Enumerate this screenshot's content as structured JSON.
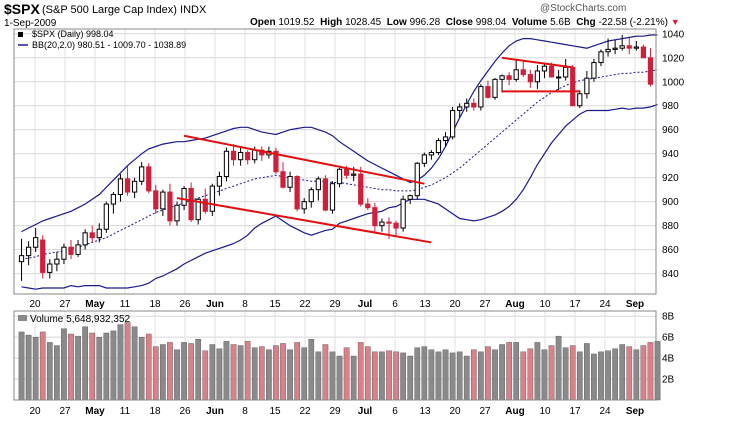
{
  "header": {
    "symbol": "$SPX",
    "description": "(S&P 500 Large Cap Index)",
    "exchange": "INDX",
    "date": "1-Sep-2009",
    "open_label": "Open",
    "open": "1019.52",
    "high_label": "High",
    "high": "1028.45",
    "low_label": "Low",
    "low": "996.28",
    "close_label": "Close",
    "close": "998.04",
    "volume_label": "Volume",
    "volume": "5.6B",
    "chg_label": "Chg",
    "chg": "-22.58 (-2.21%)",
    "watermark": "@StockCharts.com"
  },
  "colors": {
    "up": "#000000",
    "down": "#d11f3b",
    "band": "#1a1a8c",
    "trendline": "#e01010",
    "vol_up": "#8a8a8a",
    "vol_down": "#d98088"
  },
  "chart_data": [
    {
      "type": "candlestick",
      "legend": [
        "$SPX (Daily) 998.04",
        "BB(20,2.0) 980.51 - 1009.70 - 1038.89"
      ],
      "y_ticks": [
        840,
        860,
        880,
        900,
        920,
        940,
        960,
        980,
        1000,
        1020,
        1040
      ],
      "ylim": [
        823,
        1044
      ],
      "x_tick_labels": [
        "20",
        "27",
        "May",
        "11",
        "18",
        "26",
        "Jun",
        "8",
        "15",
        "22",
        "29",
        "Jul",
        "6",
        "13",
        "20",
        "27",
        "Aug",
        "10",
        "17",
        "24",
        "Sep"
      ],
      "grid": true,
      "candles": [
        {
          "o": 850,
          "h": 869,
          "l": 834,
          "c": 855
        },
        {
          "o": 855,
          "h": 867,
          "l": 847,
          "c": 862
        },
        {
          "o": 862,
          "h": 878,
          "l": 858,
          "c": 870
        },
        {
          "o": 868,
          "h": 872,
          "l": 836,
          "c": 841
        },
        {
          "o": 841,
          "h": 852,
          "l": 836,
          "c": 848
        },
        {
          "o": 848,
          "h": 858,
          "l": 842,
          "c": 852
        },
        {
          "o": 852,
          "h": 865,
          "l": 848,
          "c": 862
        },
        {
          "o": 862,
          "h": 868,
          "l": 852,
          "c": 856
        },
        {
          "o": 856,
          "h": 868,
          "l": 854,
          "c": 864
        },
        {
          "o": 864,
          "h": 877,
          "l": 860,
          "c": 874
        },
        {
          "o": 874,
          "h": 880,
          "l": 866,
          "c": 870
        },
        {
          "o": 870,
          "h": 882,
          "l": 866,
          "c": 877
        },
        {
          "o": 877,
          "h": 900,
          "l": 874,
          "c": 898
        },
        {
          "o": 898,
          "h": 908,
          "l": 890,
          "c": 906
        },
        {
          "o": 906,
          "h": 923,
          "l": 900,
          "c": 919
        },
        {
          "o": 919,
          "h": 930,
          "l": 905,
          "c": 908
        },
        {
          "o": 908,
          "h": 920,
          "l": 903,
          "c": 917
        },
        {
          "o": 917,
          "h": 933,
          "l": 914,
          "c": 929
        },
        {
          "o": 929,
          "h": 932,
          "l": 907,
          "c": 909
        },
        {
          "o": 909,
          "h": 914,
          "l": 890,
          "c": 894
        },
        {
          "o": 894,
          "h": 910,
          "l": 888,
          "c": 908
        },
        {
          "o": 908,
          "h": 915,
          "l": 880,
          "c": 884
        },
        {
          "o": 884,
          "h": 900,
          "l": 880,
          "c": 897
        },
        {
          "o": 897,
          "h": 913,
          "l": 893,
          "c": 911
        },
        {
          "o": 911,
          "h": 916,
          "l": 883,
          "c": 885
        },
        {
          "o": 885,
          "h": 903,
          "l": 881,
          "c": 902
        },
        {
          "o": 902,
          "h": 911,
          "l": 890,
          "c": 892
        },
        {
          "o": 892,
          "h": 915,
          "l": 888,
          "c": 913
        },
        {
          "o": 913,
          "h": 925,
          "l": 905,
          "c": 921
        },
        {
          "o": 921,
          "h": 945,
          "l": 917,
          "c": 942
        },
        {
          "o": 942,
          "h": 948,
          "l": 930,
          "c": 935
        },
        {
          "o": 935,
          "h": 945,
          "l": 930,
          "c": 941
        },
        {
          "o": 941,
          "h": 943,
          "l": 931,
          "c": 935
        },
        {
          "o": 935,
          "h": 946,
          "l": 932,
          "c": 943
        },
        {
          "o": 943,
          "h": 946,
          "l": 934,
          "c": 939
        },
        {
          "o": 939,
          "h": 946,
          "l": 936,
          "c": 942
        },
        {
          "o": 942,
          "h": 945,
          "l": 923,
          "c": 925
        },
        {
          "o": 925,
          "h": 933,
          "l": 911,
          "c": 912
        },
        {
          "o": 912,
          "h": 925,
          "l": 908,
          "c": 921
        },
        {
          "o": 921,
          "h": 922,
          "l": 892,
          "c": 894
        },
        {
          "o": 894,
          "h": 903,
          "l": 890,
          "c": 900
        },
        {
          "o": 900,
          "h": 912,
          "l": 895,
          "c": 910
        },
        {
          "o": 910,
          "h": 921,
          "l": 901,
          "c": 919
        },
        {
          "o": 919,
          "h": 922,
          "l": 892,
          "c": 893
        },
        {
          "o": 893,
          "h": 917,
          "l": 890,
          "c": 915
        },
        {
          "o": 915,
          "h": 928,
          "l": 912,
          "c": 927
        },
        {
          "o": 927,
          "h": 930,
          "l": 919,
          "c": 922
        },
        {
          "o": 922,
          "h": 929,
          "l": 917,
          "c": 923
        },
        {
          "o": 923,
          "h": 929,
          "l": 896,
          "c": 898
        },
        {
          "o": 898,
          "h": 903,
          "l": 893,
          "c": 895
        },
        {
          "o": 895,
          "h": 899,
          "l": 874,
          "c": 880
        },
        {
          "o": 880,
          "h": 886,
          "l": 875,
          "c": 883
        },
        {
          "o": 883,
          "h": 887,
          "l": 869,
          "c": 882
        },
        {
          "o": 882,
          "h": 884,
          "l": 872,
          "c": 878
        },
        {
          "o": 878,
          "h": 905,
          "l": 875,
          "c": 902
        },
        {
          "o": 902,
          "h": 906,
          "l": 898,
          "c": 905
        },
        {
          "o": 905,
          "h": 933,
          "l": 902,
          "c": 932
        },
        {
          "o": 932,
          "h": 941,
          "l": 929,
          "c": 939
        },
        {
          "o": 939,
          "h": 943,
          "l": 935,
          "c": 941
        },
        {
          "o": 941,
          "h": 953,
          "l": 939,
          "c": 951
        },
        {
          "o": 951,
          "h": 958,
          "l": 946,
          "c": 954
        },
        {
          "o": 954,
          "h": 979,
          "l": 952,
          "c": 976
        },
        {
          "o": 976,
          "h": 982,
          "l": 970,
          "c": 979
        },
        {
          "o": 979,
          "h": 986,
          "l": 975,
          "c": 982
        },
        {
          "o": 982,
          "h": 986,
          "l": 976,
          "c": 979
        },
        {
          "o": 979,
          "h": 998,
          "l": 976,
          "c": 996
        },
        {
          "o": 996,
          "h": 1001,
          "l": 986,
          "c": 987
        },
        {
          "o": 987,
          "h": 1003,
          "l": 985,
          "c": 1002
        },
        {
          "o": 1002,
          "h": 1006,
          "l": 991,
          "c": 1005
        },
        {
          "o": 1005,
          "h": 1008,
          "l": 997,
          "c": 1002
        },
        {
          "o": 1002,
          "h": 1018,
          "l": 1000,
          "c": 1010
        },
        {
          "o": 1010,
          "h": 1018,
          "l": 1004,
          "c": 1006
        },
        {
          "o": 1006,
          "h": 1010,
          "l": 995,
          "c": 1000
        },
        {
          "o": 1000,
          "h": 1014,
          "l": 994,
          "c": 1009
        },
        {
          "o": 1009,
          "h": 1015,
          "l": 1003,
          "c": 1013
        },
        {
          "o": 1013,
          "h": 1016,
          "l": 1004,
          "c": 1004
        },
        {
          "o": 1004,
          "h": 1010,
          "l": 993,
          "c": 1004
        },
        {
          "o": 1004,
          "h": 1019,
          "l": 1001,
          "c": 1012
        },
        {
          "o": 1012,
          "h": 1014,
          "l": 980,
          "c": 980
        },
        {
          "o": 980,
          "h": 993,
          "l": 978,
          "c": 990
        },
        {
          "o": 990,
          "h": 1009,
          "l": 986,
          "c": 1003
        },
        {
          "o": 1003,
          "h": 1019,
          "l": 1000,
          "c": 1016
        },
        {
          "o": 1016,
          "h": 1027,
          "l": 1013,
          "c": 1025
        },
        {
          "o": 1025,
          "h": 1036,
          "l": 1021,
          "c": 1027
        },
        {
          "o": 1027,
          "h": 1035,
          "l": 1023,
          "c": 1028
        },
        {
          "o": 1028,
          "h": 1039,
          "l": 1026,
          "c": 1030
        },
        {
          "o": 1030,
          "h": 1037,
          "l": 1023,
          "c": 1028
        },
        {
          "o": 1028,
          "h": 1034,
          "l": 1026,
          "c": 1029
        },
        {
          "o": 1029,
          "h": 1031,
          "l": 1020,
          "c": 1020
        },
        {
          "o": 1020,
          "h": 1028,
          "l": 996,
          "c": 998
        }
      ],
      "bb_upper": [
        875,
        878,
        881,
        884,
        886,
        888,
        890,
        892,
        895,
        898,
        902,
        906,
        912,
        918,
        924,
        930,
        935,
        940,
        944,
        946,
        948,
        949,
        950,
        950,
        951,
        952,
        953,
        955,
        957,
        959,
        961,
        962,
        962,
        960,
        958,
        957,
        956,
        958,
        960,
        961,
        962,
        962,
        960,
        958,
        955,
        950,
        946,
        942,
        938,
        934,
        931,
        928,
        925,
        922,
        919,
        916,
        918,
        922,
        928,
        936,
        946,
        958,
        970,
        981,
        992,
        1001,
        1009,
        1017,
        1024,
        1030,
        1034,
        1036,
        1036,
        1035,
        1034,
        1033,
        1032,
        1031,
        1030,
        1029,
        1028,
        1030,
        1032,
        1034,
        1035,
        1036,
        1037,
        1038,
        1038,
        1039,
        1039
      ],
      "bb_middle": [
        852,
        853,
        854,
        856,
        857,
        858,
        859,
        861,
        862,
        864,
        866,
        868,
        870,
        873,
        876,
        879,
        882,
        885,
        888,
        891,
        893,
        895,
        897,
        899,
        901,
        903,
        905,
        907,
        909,
        911,
        913,
        915,
        917,
        919,
        920,
        921,
        922,
        921,
        920,
        919,
        918,
        917,
        917,
        917,
        916,
        916,
        915,
        914,
        913,
        912,
        911,
        910,
        910,
        909,
        909,
        909,
        910,
        912,
        914,
        917,
        920,
        924,
        928,
        933,
        938,
        943,
        948,
        953,
        958,
        963,
        968,
        973,
        978,
        983,
        987,
        991,
        994,
        997,
        999,
        1001,
        1002,
        1003,
        1004,
        1005,
        1006,
        1007,
        1007,
        1008,
        1008,
        1009,
        1010
      ],
      "bb_lower": [
        829,
        828,
        827,
        828,
        828,
        828,
        828,
        830,
        829,
        830,
        830,
        830,
        828,
        828,
        828,
        828,
        829,
        830,
        832,
        836,
        838,
        841,
        844,
        848,
        851,
        854,
        857,
        859,
        861,
        863,
        865,
        868,
        872,
        878,
        882,
        885,
        888,
        884,
        880,
        877,
        874,
        872,
        874,
        876,
        877,
        882,
        884,
        886,
        888,
        890,
        891,
        892,
        895,
        896,
        899,
        902,
        902,
        902,
        900,
        898,
        894,
        890,
        886,
        885,
        884,
        885,
        887,
        889,
        892,
        896,
        902,
        910,
        920,
        931,
        940,
        949,
        956,
        963,
        968,
        973,
        976,
        976,
        976,
        976,
        977,
        978,
        977,
        978,
        978,
        979,
        981
      ]
    },
    {
      "type": "bar",
      "legend": [
        "Volume 5,648,932,352"
      ],
      "y_ticks_labels": [
        "2B",
        "4B",
        "6B",
        "8B"
      ],
      "y_ticks_values": [
        2,
        4,
        6,
        8
      ],
      "ylim": [
        0,
        8.5
      ],
      "x_tick_labels": [
        "20",
        "27",
        "May",
        "11",
        "18",
        "26",
        "Jun",
        "8",
        "15",
        "22",
        "29",
        "Jul",
        "6",
        "13",
        "20",
        "27",
        "Aug",
        "10",
        "17",
        "24",
        "Sep"
      ],
      "grid": true,
      "values": [
        6.5,
        6.2,
        6.0,
        6.5,
        5.5,
        5.2,
        6.8,
        6.3,
        6.1,
        7.0,
        6.4,
        6.0,
        6.4,
        6.6,
        7.2,
        7.4,
        7.0,
        6.0,
        6.3,
        5.1,
        5.3,
        5.5,
        4.8,
        5.5,
        5.4,
        5.8,
        4.7,
        5.3,
        4.9,
        5.6,
        5.3,
        5.2,
        5.6,
        5.0,
        5.1,
        4.8,
        5.2,
        5.4,
        4.8,
        5.5,
        5.0,
        5.8,
        4.6,
        5.3,
        4.6,
        4.2,
        5.0,
        4.2,
        5.5,
        5.1,
        4.6,
        4.6,
        4.7,
        4.6,
        4.5,
        4.2,
        5.0,
        5.1,
        4.8,
        4.6,
        4.8,
        4.5,
        4.6,
        4.2,
        4.8,
        4.6,
        5.1,
        4.8,
        5.3,
        5.5,
        5.5,
        4.6,
        4.9,
        5.5,
        4.8,
        5.2,
        6.1,
        5.0,
        5.2,
        4.6,
        5.4,
        4.4,
        4.6,
        4.7,
        4.9,
        5.3,
        5.1,
        4.8,
        5.2,
        5.5,
        5.6
      ]
    }
  ]
}
